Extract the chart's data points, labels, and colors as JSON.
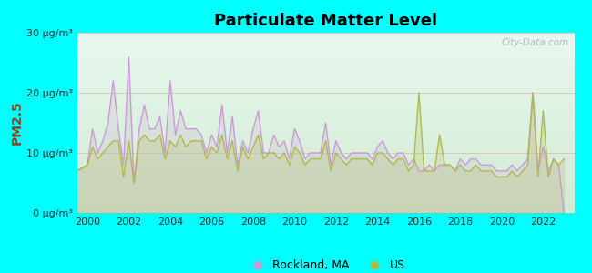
{
  "title": "Particulate Matter Level",
  "ylabel": "PM2.5",
  "background_color": "#00FFFF",
  "ylim": [
    0,
    30
  ],
  "yticks": [
    0,
    10,
    20,
    30
  ],
  "ytick_labels": [
    "0 μg/m³",
    "10 μg/m³",
    "20 μg/m³",
    "30 μg/m³"
  ],
  "xlim": [
    1999.5,
    2023.5
  ],
  "xticks": [
    2000,
    2002,
    2004,
    2006,
    2008,
    2010,
    2012,
    2014,
    2016,
    2018,
    2020,
    2022
  ],
  "line1_color": "#c899d4",
  "line2_color": "#b0b84a",
  "legend_label1": "Rockland, MA",
  "legend_label2": "US",
  "watermark": "City-Data.com",
  "ylabel_color": "#884422",
  "plot_bg_top": "#e8f8f8",
  "plot_bg_bottom": "#d4edda",
  "rockland_x": [
    1999.5,
    2000.0,
    2000.25,
    2000.5,
    2000.75,
    2001.0,
    2001.25,
    2001.5,
    2001.75,
    2002.0,
    2002.25,
    2002.5,
    2002.75,
    2003.0,
    2003.25,
    2003.5,
    2003.75,
    2004.0,
    2004.25,
    2004.5,
    2004.75,
    2005.0,
    2005.25,
    2005.5,
    2005.75,
    2006.0,
    2006.25,
    2006.5,
    2006.75,
    2007.0,
    2007.25,
    2007.5,
    2007.75,
    2008.0,
    2008.25,
    2008.5,
    2008.75,
    2009.0,
    2009.25,
    2009.5,
    2009.75,
    2010.0,
    2010.25,
    2010.5,
    2010.75,
    2011.0,
    2011.25,
    2011.5,
    2011.75,
    2012.0,
    2012.25,
    2012.5,
    2012.75,
    2013.0,
    2013.25,
    2013.5,
    2013.75,
    2014.0,
    2014.25,
    2014.5,
    2014.75,
    2015.0,
    2015.25,
    2015.5,
    2015.75,
    2016.0,
    2016.25,
    2016.5,
    2016.75,
    2017.0,
    2017.25,
    2017.5,
    2017.75,
    2018.0,
    2018.25,
    2018.5,
    2018.75,
    2019.0,
    2019.25,
    2019.5,
    2019.75,
    2020.0,
    2020.25,
    2020.5,
    2020.75,
    2021.0,
    2021.25,
    2021.5,
    2021.75,
    2022.0,
    2022.25,
    2022.5,
    2022.75,
    2023.0
  ],
  "rockland_y": [
    7,
    8,
    14,
    10,
    12,
    15,
    22,
    14,
    8,
    26,
    5,
    14,
    18,
    14,
    14,
    16,
    10,
    22,
    13,
    17,
    14,
    14,
    14,
    13,
    10,
    13,
    11,
    18,
    10,
    16,
    8,
    12,
    10,
    14,
    17,
    10,
    10,
    13,
    11,
    12,
    9,
    14,
    12,
    9,
    10,
    10,
    10,
    15,
    8,
    12,
    10,
    9,
    10,
    10,
    10,
    10,
    9,
    11,
    12,
    10,
    9,
    10,
    10,
    8,
    9,
    7,
    7,
    8,
    7,
    8,
    8,
    8,
    7,
    9,
    8,
    9,
    9,
    8,
    8,
    8,
    7,
    7,
    7,
    8,
    7,
    8,
    9,
    20,
    7,
    11,
    7,
    9,
    8,
    0
  ],
  "us_x": [
    1999.5,
    2000.0,
    2000.25,
    2000.5,
    2000.75,
    2001.0,
    2001.25,
    2001.5,
    2001.75,
    2002.0,
    2002.25,
    2002.5,
    2002.75,
    2003.0,
    2003.25,
    2003.5,
    2003.75,
    2004.0,
    2004.25,
    2004.5,
    2004.75,
    2005.0,
    2005.25,
    2005.5,
    2005.75,
    2006.0,
    2006.25,
    2006.5,
    2006.75,
    2007.0,
    2007.25,
    2007.5,
    2007.75,
    2008.0,
    2008.25,
    2008.5,
    2008.75,
    2009.0,
    2009.25,
    2009.5,
    2009.75,
    2010.0,
    2010.25,
    2010.5,
    2010.75,
    2011.0,
    2011.25,
    2011.5,
    2011.75,
    2012.0,
    2012.25,
    2012.5,
    2012.75,
    2013.0,
    2013.25,
    2013.5,
    2013.75,
    2014.0,
    2014.25,
    2014.5,
    2014.75,
    2015.0,
    2015.25,
    2015.5,
    2015.75,
    2016.0,
    2016.25,
    2016.5,
    2016.75,
    2017.0,
    2017.25,
    2017.5,
    2017.75,
    2018.0,
    2018.25,
    2018.5,
    2018.75,
    2019.0,
    2019.25,
    2019.5,
    2019.75,
    2020.0,
    2020.25,
    2020.5,
    2020.75,
    2021.0,
    2021.25,
    2021.5,
    2021.75,
    2022.0,
    2022.25,
    2022.5,
    2022.75,
    2023.0
  ],
  "us_y": [
    7,
    8,
    11,
    9,
    10,
    11,
    12,
    12,
    6,
    12,
    5,
    12,
    13,
    12,
    12,
    13,
    9,
    12,
    11,
    13,
    11,
    12,
    12,
    12,
    9,
    11,
    10,
    13,
    9,
    12,
    7,
    11,
    9,
    11,
    13,
    9,
    10,
    10,
    9,
    10,
    8,
    11,
    10,
    8,
    9,
    9,
    9,
    12,
    7,
    10,
    9,
    8,
    9,
    9,
    9,
    9,
    8,
    10,
    10,
    9,
    8,
    9,
    9,
    7,
    8,
    20,
    7,
    7,
    7,
    13,
    8,
    8,
    7,
    8,
    7,
    7,
    8,
    7,
    7,
    7,
    6,
    6,
    6,
    7,
    6,
    7,
    8,
    20,
    6,
    17,
    6,
    9,
    8,
    9
  ]
}
